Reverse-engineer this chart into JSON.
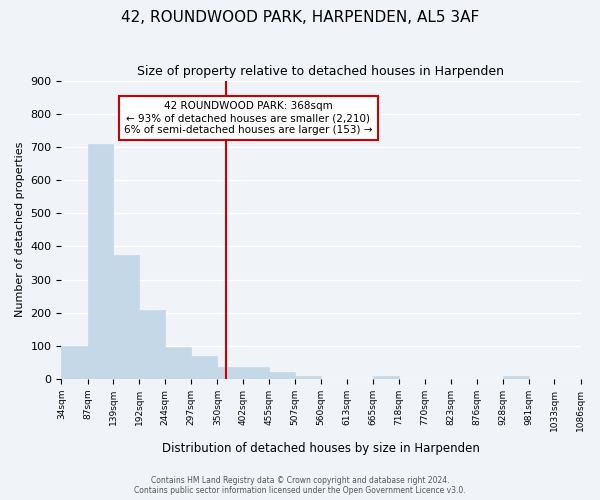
{
  "title": "42, ROUNDWOOD PARK, HARPENDEN, AL5 3AF",
  "subtitle": "Size of property relative to detached houses in Harpenden",
  "xlabel": "Distribution of detached houses by size in Harpenden",
  "ylabel": "Number of detached properties",
  "bar_edges": [
    34,
    87,
    139,
    192,
    244,
    297,
    350,
    402,
    455,
    507,
    560,
    613,
    665,
    718,
    770,
    823,
    876,
    928,
    981,
    1033,
    1086
  ],
  "bar_heights": [
    100,
    710,
    375,
    208,
    98,
    70,
    35,
    35,
    22,
    10,
    0,
    0,
    10,
    0,
    0,
    0,
    0,
    10,
    0,
    0
  ],
  "tick_labels": [
    "34sqm",
    "87sqm",
    "139sqm",
    "192sqm",
    "244sqm",
    "297sqm",
    "350sqm",
    "402sqm",
    "455sqm",
    "507sqm",
    "560sqm",
    "613sqm",
    "665sqm",
    "718sqm",
    "770sqm",
    "823sqm",
    "876sqm",
    "928sqm",
    "981sqm",
    "1033sqm",
    "1086sqm"
  ],
  "bar_color": "#c5d8e8",
  "bar_edgecolor": "#c5d8e8",
  "property_line_x": 368,
  "property_line_color": "#cc0000",
  "annotation_title": "42 ROUNDWOOD PARK: 368sqm",
  "annotation_line1": "← 93% of detached houses are smaller (2,210)",
  "annotation_line2": "6% of semi-detached houses are larger (153) →",
  "annotation_box_color": "#ffffff",
  "annotation_box_edgecolor": "#cc0000",
  "ylim": [
    0,
    900
  ],
  "yticks": [
    0,
    100,
    200,
    300,
    400,
    500,
    600,
    700,
    800,
    900
  ],
  "footer_line1": "Contains HM Land Registry data © Crown copyright and database right 2024.",
  "footer_line2": "Contains public sector information licensed under the Open Government Licence v3.0.",
  "bg_color": "#f0f4f8",
  "grid_color": "#ffffff"
}
